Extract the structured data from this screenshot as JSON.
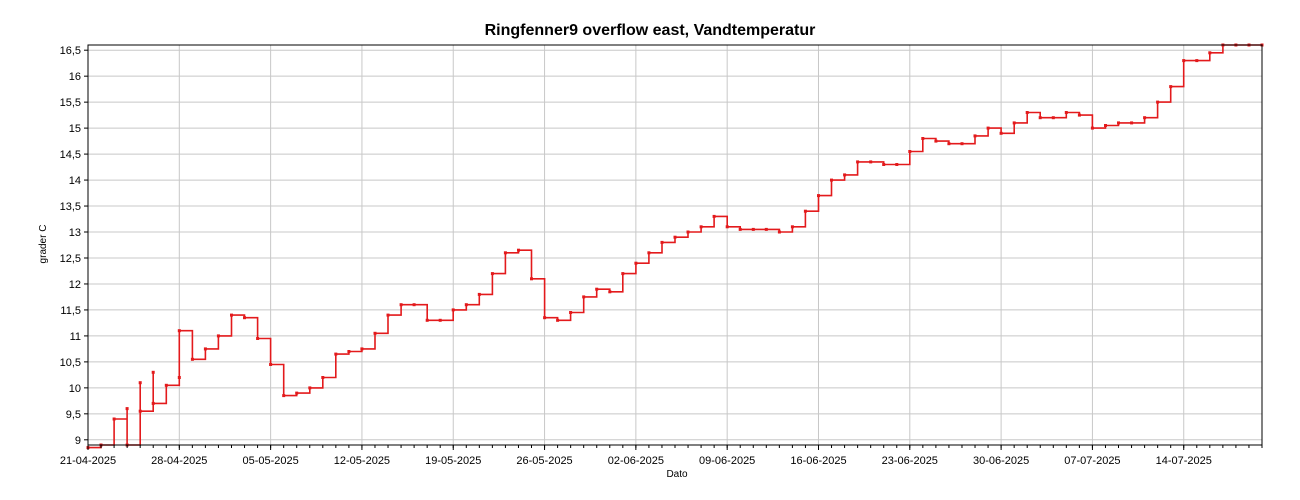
{
  "chart_data": {
    "type": "line",
    "title": "Ringfenner9 overflow east, Vandtemperatur",
    "xlabel": "Dato",
    "ylabel": "grader C",
    "x_tick_labels": [
      "21-04-2025",
      "28-04-2025",
      "05-05-2025",
      "12-05-2025",
      "19-05-2025",
      "26-05-2025",
      "02-06-2025",
      "09-06-2025",
      "16-06-2025",
      "23-06-2025",
      "30-06-2025",
      "07-07-2025",
      "14-07-2025"
    ],
    "y_tick_labels": [
      "9",
      "9,5",
      "10",
      "10,5",
      "11",
      "11,5",
      "12",
      "12,5",
      "13",
      "13,5",
      "14",
      "14,5",
      "15",
      "15,5",
      "16",
      "16,5"
    ],
    "xlim": [
      "2025-04-21",
      "2025-07-20"
    ],
    "ylim": [
      8.9,
      16.6
    ],
    "grid": true,
    "line_color": "#e31a1c",
    "series": [
      {
        "x": [
          "2025-04-21",
          "2025-04-22",
          "2025-04-23",
          "2025-04-24",
          "2025-04-24",
          "2025-04-25",
          "2025-04-25",
          "2025-04-26",
          "2025-04-26",
          "2025-04-27",
          "2025-04-28",
          "2025-04-28",
          "2025-04-29",
          "2025-04-30",
          "2025-05-01",
          "2025-05-02",
          "2025-05-03",
          "2025-05-04",
          "2025-05-05",
          "2025-05-06",
          "2025-05-07",
          "2025-05-08",
          "2025-05-09",
          "2025-05-10",
          "2025-05-11",
          "2025-05-12",
          "2025-05-13",
          "2025-05-14",
          "2025-05-15",
          "2025-05-16",
          "2025-05-17",
          "2025-05-18",
          "2025-05-19",
          "2025-05-20",
          "2025-05-21",
          "2025-05-22",
          "2025-05-23",
          "2025-05-24",
          "2025-05-25",
          "2025-05-26",
          "2025-05-27",
          "2025-05-28",
          "2025-05-29",
          "2025-05-30",
          "2025-05-31",
          "2025-06-01",
          "2025-06-02",
          "2025-06-03",
          "2025-06-04",
          "2025-06-05",
          "2025-06-06",
          "2025-06-07",
          "2025-06-08",
          "2025-06-09",
          "2025-06-10",
          "2025-06-11",
          "2025-06-12",
          "2025-06-13",
          "2025-06-14",
          "2025-06-15",
          "2025-06-16",
          "2025-06-17",
          "2025-06-18",
          "2025-06-19",
          "2025-06-20",
          "2025-06-21",
          "2025-06-22",
          "2025-06-23",
          "2025-06-24",
          "2025-06-25",
          "2025-06-26",
          "2025-06-27",
          "2025-06-28",
          "2025-06-29",
          "2025-06-30",
          "2025-07-01",
          "2025-07-02",
          "2025-07-03",
          "2025-07-04",
          "2025-07-05",
          "2025-07-06",
          "2025-07-07",
          "2025-07-08",
          "2025-07-09",
          "2025-07-10",
          "2025-07-11",
          "2025-07-12",
          "2025-07-13",
          "2025-07-14",
          "2025-07-15",
          "2025-07-16",
          "2025-07-17",
          "2025-07-18",
          "2025-07-19",
          "2025-07-20"
        ],
        "y": [
          8.85,
          8.9,
          9.4,
          9.6,
          8.9,
          10.1,
          9.55,
          10.3,
          9.7,
          10.05,
          10.2,
          11.1,
          10.55,
          10.75,
          11.0,
          11.4,
          11.35,
          10.95,
          10.45,
          9.85,
          9.9,
          10.0,
          10.2,
          10.65,
          10.7,
          10.75,
          11.05,
          11.4,
          11.6,
          11.6,
          11.3,
          11.3,
          11.5,
          11.6,
          11.8,
          12.2,
          12.6,
          12.65,
          12.1,
          11.35,
          11.3,
          11.45,
          11.75,
          11.9,
          11.85,
          12.2,
          12.4,
          12.6,
          12.8,
          12.9,
          13.0,
          13.1,
          13.3,
          13.1,
          13.05,
          13.05,
          13.05,
          13.0,
          13.1,
          13.4,
          13.7,
          14.0,
          14.1,
          14.35,
          14.35,
          14.3,
          14.3,
          14.55,
          14.8,
          14.75,
          14.7,
          14.7,
          14.85,
          15.0,
          14.9,
          15.1,
          15.3,
          15.2,
          15.2,
          15.3,
          15.25,
          15.0,
          15.05,
          15.1,
          15.1,
          15.2,
          15.5,
          15.8,
          16.3,
          16.3,
          16.45,
          16.6,
          16.6,
          16.6,
          16.6
        ]
      }
    ]
  }
}
